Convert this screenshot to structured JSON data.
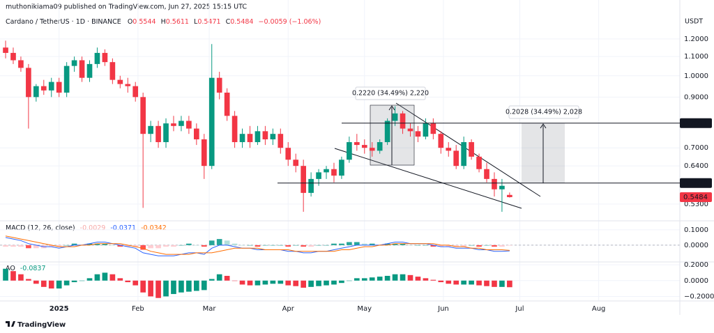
{
  "header": {
    "author_line": "muthonikiama09 published on TradingView.com, Jun 27, 2025 15:15 UTC",
    "symbol": "Cardano / TetherUS · 1D · BINANCE",
    "ohlc_labels": [
      "O",
      "H",
      "L",
      "C"
    ],
    "change": "−0.0059 (−1.06%)"
  },
  "logo": "TradingView",
  "chart_data": [
    {
      "type": "candlestick",
      "currency": "USDT",
      "log_scale": true,
      "grid": true,
      "up_color": "#089981",
      "down_color": "#f23645",
      "x": [
        0,
        3,
        6,
        9,
        12,
        15,
        18,
        21,
        24,
        27,
        30,
        33,
        36,
        39,
        42,
        45,
        48,
        51,
        54,
        57,
        60,
        63,
        66,
        69,
        72,
        75,
        78,
        81,
        84,
        87,
        90,
        93,
        96,
        99,
        102,
        105,
        108,
        111,
        114,
        117,
        120,
        123,
        126,
        129,
        132,
        135,
        138,
        141,
        144,
        147,
        150,
        153,
        156,
        159,
        162,
        165,
        168,
        171,
        174,
        177,
        180,
        183,
        186,
        189,
        192,
        195,
        198
      ],
      "open": [
        1.15,
        1.12,
        1.08,
        1.04,
        0.9,
        0.95,
        0.93,
        0.97,
        0.92,
        1.05,
        1.08,
        0.99,
        1.06,
        1.12,
        1.07,
        0.98,
        0.96,
        0.95,
        0.9,
        0.75,
        0.78,
        0.72,
        0.79,
        0.78,
        0.8,
        0.77,
        0.73,
        0.64,
        0.99,
        0.92,
        0.82,
        0.72,
        0.75,
        0.72,
        0.76,
        0.73,
        0.75,
        0.7,
        0.66,
        0.64,
        0.56,
        0.6,
        0.62,
        0.63,
        0.61,
        0.66,
        0.72,
        0.71,
        0.7,
        0.69,
        0.72,
        0.8,
        0.83,
        0.77,
        0.76,
        0.74,
        0.79,
        0.75,
        0.7,
        0.69,
        0.64,
        0.72,
        0.67,
        0.63,
        0.6,
        0.57,
        0.5544
      ],
      "high": [
        1.19,
        1.15,
        1.1,
        1.06,
        0.96,
        0.98,
        0.99,
        0.99,
        1.07,
        1.1,
        1.1,
        1.08,
        1.15,
        1.14,
        1.09,
        1.0,
        0.99,
        0.97,
        0.92,
        0.8,
        0.8,
        0.81,
        0.82,
        0.82,
        0.82,
        0.79,
        0.75,
        1.17,
        1.02,
        0.94,
        0.84,
        0.77,
        0.78,
        0.78,
        0.78,
        0.77,
        0.77,
        0.72,
        0.68,
        0.66,
        0.62,
        0.63,
        0.64,
        0.65,
        0.67,
        0.74,
        0.75,
        0.73,
        0.72,
        0.73,
        0.81,
        0.86,
        0.84,
        0.79,
        0.78,
        0.81,
        0.81,
        0.76,
        0.72,
        0.71,
        0.74,
        0.73,
        0.68,
        0.65,
        0.62,
        0.6,
        0.5611
      ],
      "low": [
        1.09,
        1.06,
        1.02,
        0.77,
        0.88,
        0.91,
        0.9,
        0.9,
        0.9,
        1.02,
        0.97,
        0.97,
        1.04,
        1.05,
        0.96,
        0.94,
        0.92,
        0.88,
        0.52,
        0.72,
        0.7,
        0.7,
        0.76,
        0.76,
        0.75,
        0.71,
        0.6,
        0.63,
        0.89,
        0.8,
        0.7,
        0.7,
        0.7,
        0.71,
        0.71,
        0.71,
        0.68,
        0.64,
        0.62,
        0.51,
        0.55,
        0.58,
        0.6,
        0.59,
        0.6,
        0.65,
        0.69,
        0.68,
        0.67,
        0.68,
        0.71,
        0.78,
        0.75,
        0.74,
        0.72,
        0.73,
        0.73,
        0.68,
        0.67,
        0.63,
        0.63,
        0.66,
        0.62,
        0.59,
        0.55,
        0.51,
        0.5471
      ],
      "close": [
        1.12,
        1.08,
        1.04,
        0.9,
        0.95,
        0.93,
        0.97,
        0.92,
        1.05,
        1.08,
        0.99,
        1.06,
        1.12,
        1.07,
        0.98,
        0.96,
        0.95,
        0.9,
        0.75,
        0.78,
        0.72,
        0.79,
        0.78,
        0.8,
        0.77,
        0.73,
        0.64,
        0.99,
        0.92,
        0.82,
        0.72,
        0.75,
        0.72,
        0.76,
        0.73,
        0.75,
        0.7,
        0.66,
        0.64,
        0.56,
        0.6,
        0.62,
        0.63,
        0.61,
        0.66,
        0.72,
        0.71,
        0.7,
        0.69,
        0.72,
        0.8,
        0.83,
        0.77,
        0.76,
        0.74,
        0.79,
        0.75,
        0.7,
        0.69,
        0.64,
        0.72,
        0.67,
        0.63,
        0.6,
        0.57,
        0.58,
        0.5484
      ],
      "xlim": [
        -2.2,
        264.6
      ],
      "xticks": [
        {
          "value": 21,
          "label": "2025"
        },
        {
          "value": 52,
          "label": "Feb"
        },
        {
          "value": 80,
          "label": "Mar"
        },
        {
          "value": 111,
          "label": "Apr"
        },
        {
          "value": 141,
          "label": "May"
        },
        {
          "value": 172,
          "label": "Jun"
        },
        {
          "value": 202,
          "label": "Jul"
        },
        {
          "value": 233,
          "label": "Aug"
        }
      ],
      "ylim": [
        0.491,
        1.349
      ],
      "yticks": [
        {
          "value": 1.2,
          "label": "1.2000"
        },
        {
          "value": 1.1,
          "label": "1.1000"
        },
        {
          "value": 1.0,
          "label": "1.0000"
        },
        {
          "value": 0.9,
          "label": "0.9000"
        },
        {
          "value": 0.7,
          "label": "0.7000"
        },
        {
          "value": 0.64,
          "label": "0.6400"
        },
        {
          "value": 0.53,
          "label": "0.5300"
        }
      ],
      "levels": [
        0.7911,
        0.5879
      ],
      "measurement_labels": [
        "0.2220 (34.49%) 2,220",
        "0.2028 (34.49%) 2,028"
      ]
    },
    {
      "type": "macd",
      "title": "MACD (12, 26, close)",
      "macd_color": "#2962ff",
      "signal_color": "#ff6d00",
      "histogram": [
        -0.01,
        -0.01,
        -0.01,
        -0.02,
        -0.02,
        -0.02,
        -0.01,
        -0.01,
        0.0,
        0.01,
        0.0,
        0.01,
        0.01,
        0.01,
        0.0,
        -0.01,
        -0.01,
        -0.01,
        -0.03,
        -0.02,
        -0.02,
        -0.01,
        -0.01,
        0.0,
        0.01,
        0.0,
        -0.01,
        0.03,
        0.04,
        0.03,
        0.01,
        0.0,
        0.0,
        -0.01,
        0.0,
        0.0,
        0.0,
        -0.01,
        0.0,
        -0.01,
        -0.01,
        0.0,
        0.0,
        0.01,
        0.01,
        0.02,
        0.02,
        0.01,
        0.01,
        0.0,
        0.01,
        0.01,
        0.01,
        0.0,
        0.0,
        0.0,
        -0.01,
        -0.01,
        -0.01,
        -0.01,
        -0.01,
        0.0,
        -0.01,
        0.0,
        -0.01,
        -0.01,
        -0.0029
      ],
      "macd": [
        0.05,
        0.04,
        0.03,
        0.01,
        0.0,
        -0.01,
        -0.01,
        -0.02,
        -0.01,
        0.0,
        0.0,
        0.01,
        0.02,
        0.02,
        0.01,
        0.0,
        -0.01,
        -0.02,
        -0.05,
        -0.06,
        -0.07,
        -0.07,
        -0.07,
        -0.06,
        -0.05,
        -0.05,
        -0.06,
        -0.02,
        0.0,
        0.0,
        -0.01,
        -0.02,
        -0.02,
        -0.03,
        -0.03,
        -0.03,
        -0.03,
        -0.04,
        -0.04,
        -0.05,
        -0.05,
        -0.04,
        -0.04,
        -0.03,
        -0.02,
        -0.01,
        0.0,
        0.0,
        0.0,
        0.0,
        0.01,
        0.02,
        0.02,
        0.01,
        0.01,
        0.01,
        0.0,
        -0.01,
        -0.01,
        -0.02,
        -0.02,
        -0.02,
        -0.03,
        -0.03,
        -0.04,
        -0.04,
        -0.0371
      ],
      "signal": [
        0.06,
        0.05,
        0.04,
        0.03,
        0.02,
        0.01,
        0.0,
        -0.01,
        -0.01,
        -0.01,
        0.0,
        0.0,
        0.01,
        0.01,
        0.01,
        0.01,
        0.0,
        -0.01,
        -0.02,
        -0.04,
        -0.05,
        -0.06,
        -0.06,
        -0.06,
        -0.06,
        -0.05,
        -0.05,
        -0.05,
        -0.04,
        -0.03,
        -0.02,
        -0.02,
        -0.02,
        -0.02,
        -0.03,
        -0.03,
        -0.03,
        -0.03,
        -0.04,
        -0.04,
        -0.04,
        -0.04,
        -0.04,
        -0.04,
        -0.03,
        -0.03,
        -0.02,
        -0.01,
        -0.01,
        0.0,
        0.0,
        0.01,
        0.01,
        0.01,
        0.01,
        0.01,
        0.01,
        0.0,
        0.0,
        -0.01,
        -0.01,
        -0.02,
        -0.02,
        -0.03,
        -0.03,
        -0.03,
        -0.0342
      ],
      "ylim": [
        -0.105,
        0.145
      ],
      "yticks": [
        {
          "value": 0.1,
          "label": "0.1000"
        },
        {
          "value": 0,
          "label": "0.0000"
        }
      ]
    },
    {
      "type": "ao",
      "title": "AO",
      "values": [
        0.15,
        0.12,
        0.08,
        0.02,
        -0.04,
        -0.08,
        -0.1,
        -0.1,
        -0.06,
        -0.02,
        0.0,
        0.03,
        0.08,
        0.1,
        0.08,
        0.03,
        -0.02,
        -0.06,
        -0.15,
        -0.2,
        -0.22,
        -0.2,
        -0.17,
        -0.15,
        -0.14,
        -0.13,
        -0.12,
        0.02,
        0.08,
        0.06,
        0.0,
        -0.05,
        -0.06,
        -0.06,
        -0.05,
        -0.04,
        -0.04,
        -0.06,
        -0.07,
        -0.09,
        -0.08,
        -0.07,
        -0.06,
        -0.05,
        -0.03,
        0.0,
        0.03,
        0.03,
        0.04,
        0.05,
        0.06,
        0.08,
        0.08,
        0.07,
        0.05,
        0.03,
        0.01,
        -0.02,
        -0.04,
        -0.05,
        -0.05,
        -0.05,
        -0.06,
        -0.07,
        -0.08,
        -0.08,
        -0.0837
      ],
      "ylim": [
        -0.24,
        0.236
      ],
      "yticks": [
        {
          "value": 0.2,
          "label": "0.2000"
        },
        {
          "value": 0,
          "label": "0.0000"
        },
        {
          "value": -0.2,
          "label": "−0.2000"
        }
      ]
    }
  ]
}
